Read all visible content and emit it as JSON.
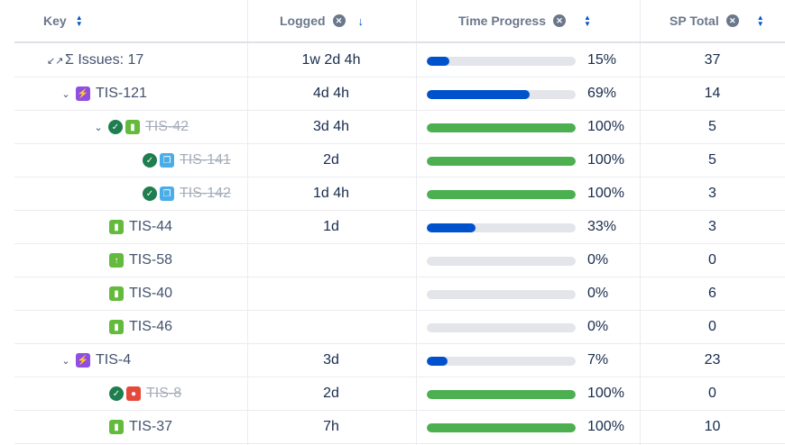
{
  "header": {
    "key": "Key",
    "logged": "Logged",
    "time_progress": "Time Progress",
    "sp_total": "SP Total"
  },
  "colors": {
    "blue": "#0052cc",
    "green": "#4caf50",
    "track": "#e4e5ea"
  },
  "rows": [
    {
      "key": "Σ Issues: 17",
      "logged": "1w 2d 4h",
      "progress": 15,
      "progress_label": "15%",
      "sp": "37"
    },
    {
      "key": "TIS-121",
      "logged": "4d 4h",
      "progress": 69,
      "progress_label": "69%",
      "sp": "14"
    },
    {
      "key": "TIS-42",
      "logged": "3d 4h",
      "progress": 100,
      "progress_label": "100%",
      "sp": "5"
    },
    {
      "key": "TIS-141",
      "logged": "2d",
      "progress": 100,
      "progress_label": "100%",
      "sp": "5"
    },
    {
      "key": "TIS-142",
      "logged": "1d 4h",
      "progress": 100,
      "progress_label": "100%",
      "sp": "3"
    },
    {
      "key": "TIS-44",
      "logged": "1d",
      "progress": 33,
      "progress_label": "33%",
      "sp": "3"
    },
    {
      "key": "TIS-58",
      "logged": "",
      "progress": 0,
      "progress_label": "0%",
      "sp": "0"
    },
    {
      "key": "TIS-40",
      "logged": "",
      "progress": 0,
      "progress_label": "0%",
      "sp": "6"
    },
    {
      "key": "TIS-46",
      "logged": "",
      "progress": 0,
      "progress_label": "0%",
      "sp": "0"
    },
    {
      "key": "TIS-4",
      "logged": "3d",
      "progress": 7,
      "progress_label": "7%",
      "sp": "23"
    },
    {
      "key": "TIS-8",
      "logged": "2d",
      "progress": 100,
      "progress_label": "100%",
      "sp": "0"
    },
    {
      "key": "TIS-37",
      "logged": "7h",
      "progress": 100,
      "progress_label": "100%",
      "sp": "10"
    }
  ]
}
